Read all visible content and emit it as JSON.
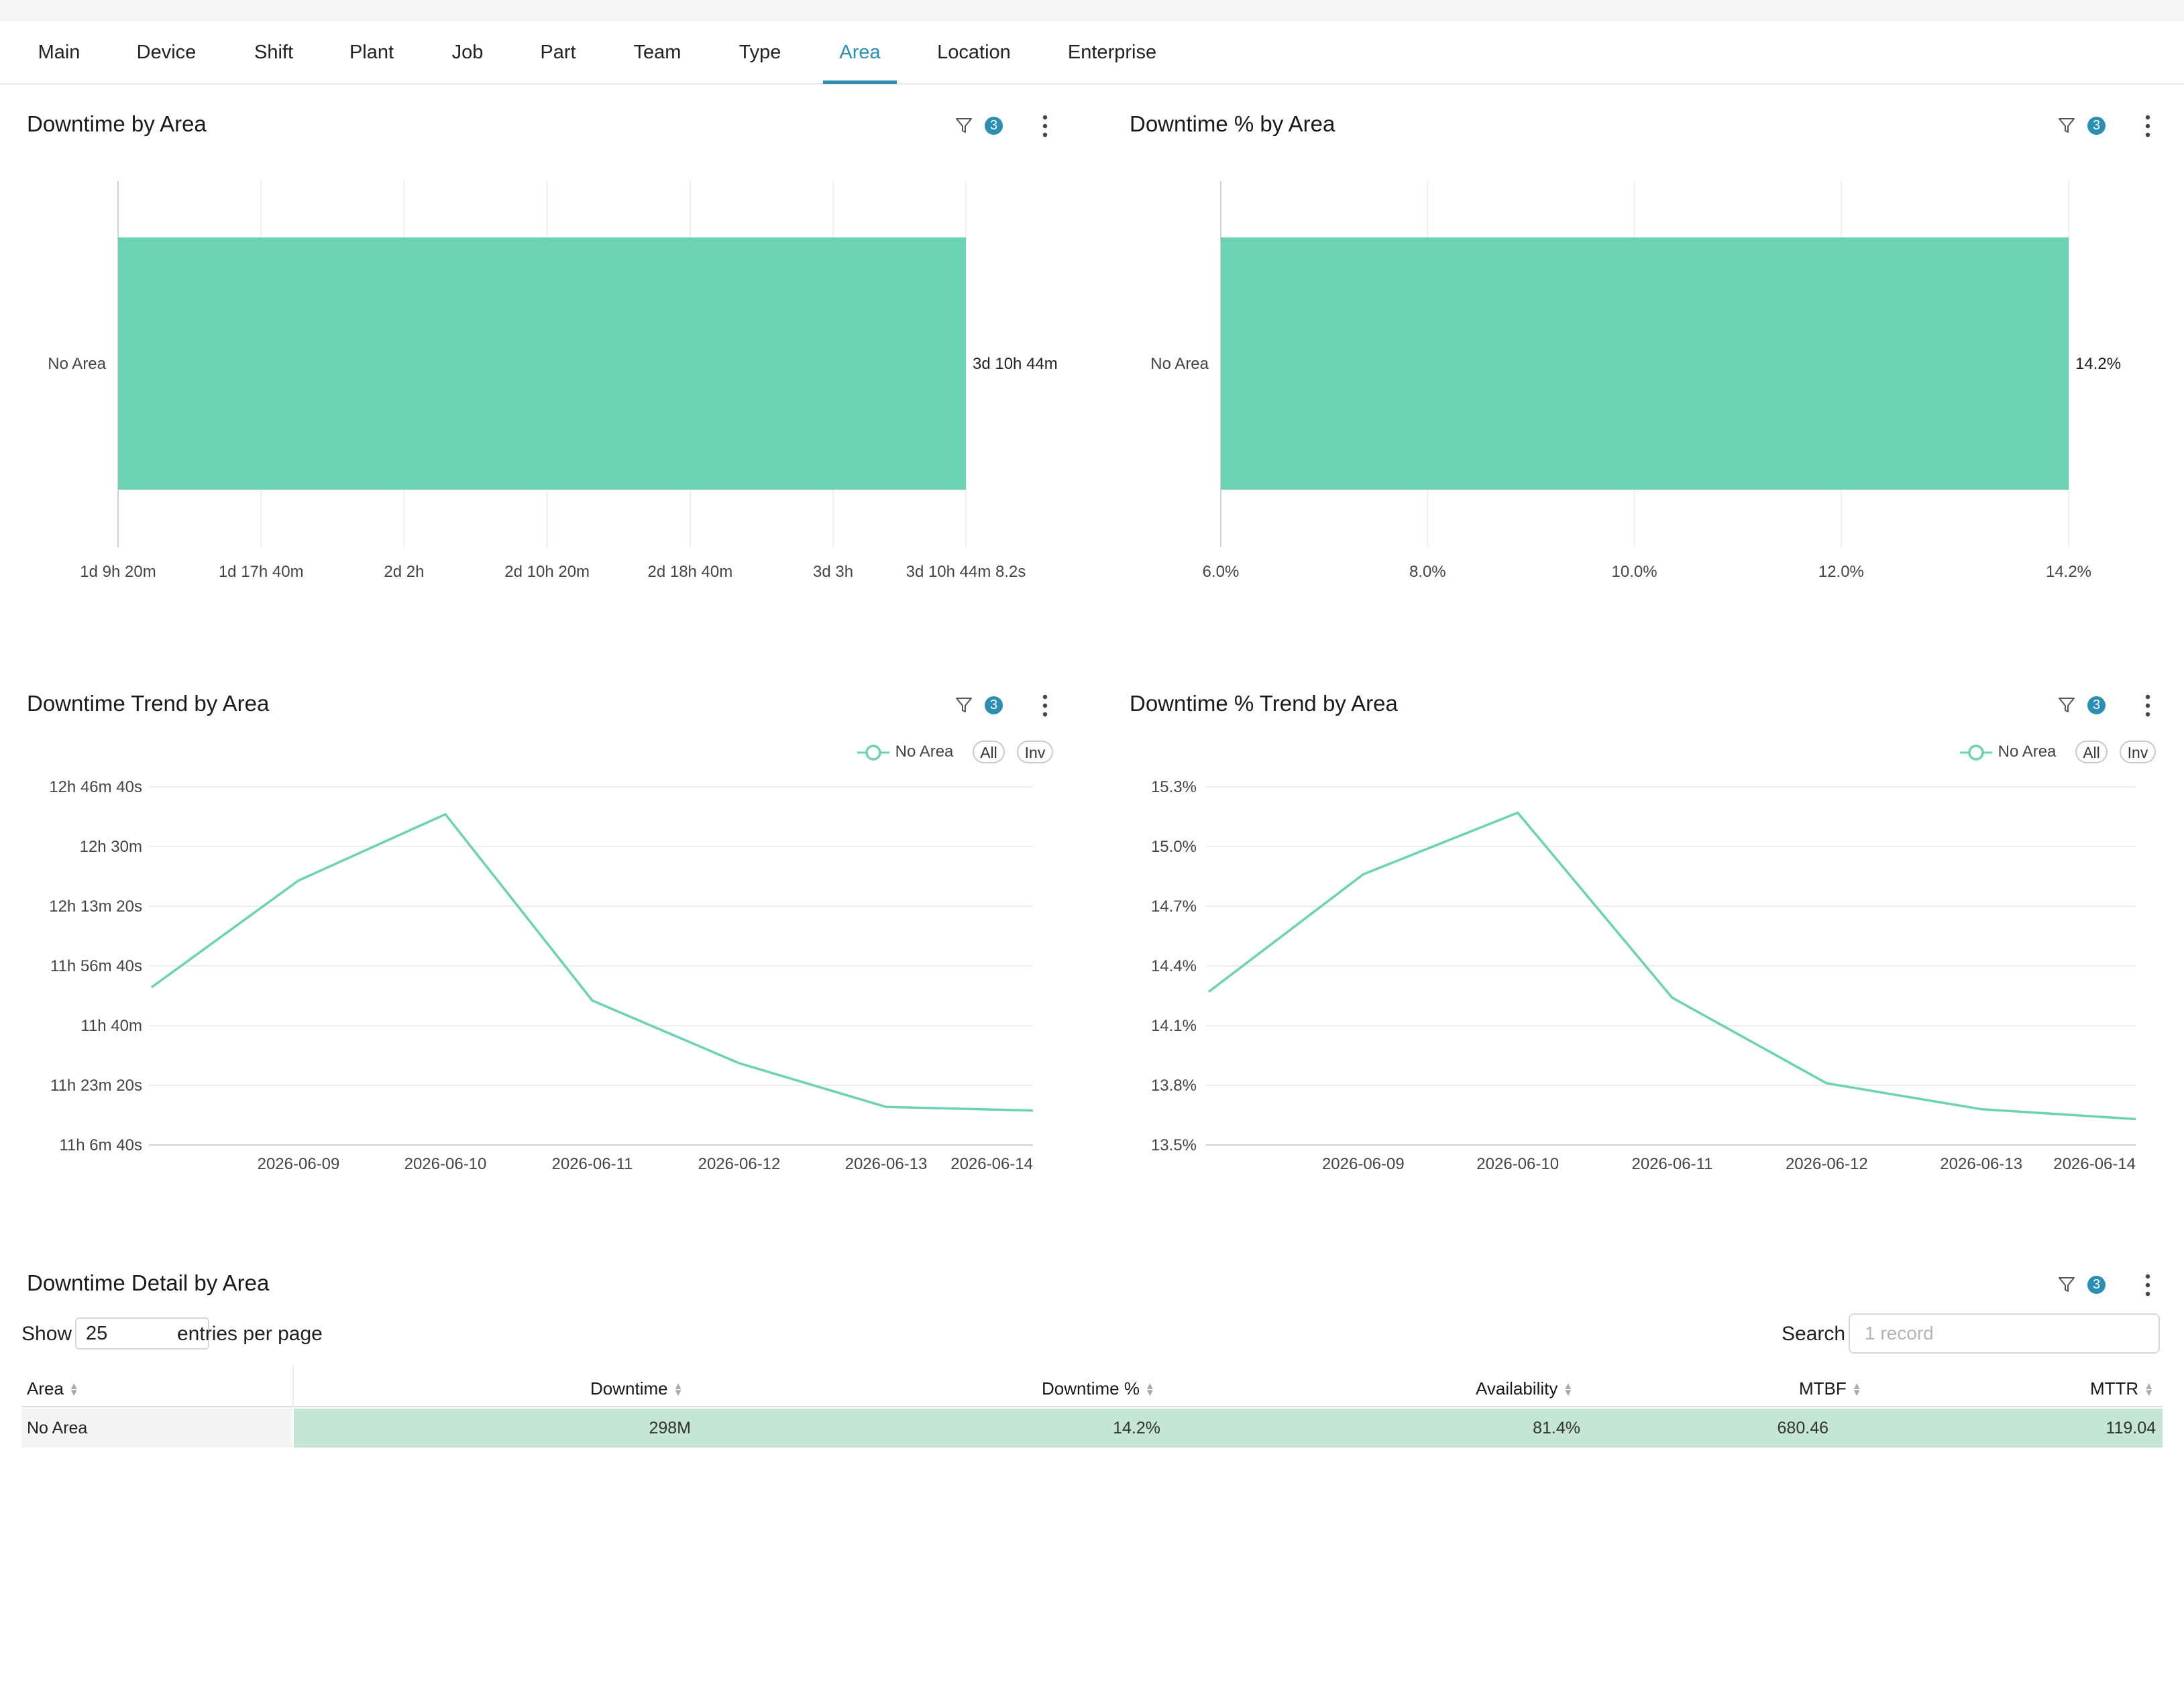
{
  "tabs": [
    {
      "label": "Main"
    },
    {
      "label": "Device"
    },
    {
      "label": "Shift"
    },
    {
      "label": "Plant"
    },
    {
      "label": "Job"
    },
    {
      "label": "Part"
    },
    {
      "label": "Team"
    },
    {
      "label": "Type"
    },
    {
      "label": "Area"
    },
    {
      "label": "Location"
    },
    {
      "label": "Enterprise"
    }
  ],
  "active_tab": "Area",
  "accent_color": "#2a8fb3",
  "series_color": "#6cd3b2",
  "filter_count": "3",
  "panels": {
    "downtime_by_area": {
      "title": "Downtime by Area"
    },
    "downtime_pct_by_area": {
      "title": "Downtime % by Area"
    },
    "downtime_trend": {
      "title": "Downtime Trend by Area",
      "legend": "No Area",
      "all_label": "All",
      "inv_label": "Inv"
    },
    "downtime_pct_trend": {
      "title": "Downtime % Trend by Area",
      "legend": "No Area",
      "all_label": "All",
      "inv_label": "Inv"
    },
    "detail": {
      "title": "Downtime Detail by Area"
    }
  },
  "chart_data": [
    {
      "type": "bar",
      "orientation": "horizontal",
      "title": "Downtime by Area",
      "categories": [
        "No Area"
      ],
      "value_labels": [
        "3d 10h 44m"
      ],
      "x_ticks": [
        "1d 9h 20m",
        "1d 17h 40m",
        "2d 2h",
        "2d 10h 20m",
        "2d 18h 40m",
        "3d 3h",
        "3d 10h 44m 8.2s"
      ],
      "x_tick_minutes": [
        2000,
        2500,
        3000,
        3500,
        4000,
        4500,
        4964.1
      ],
      "values_minutes": [
        4964.1
      ],
      "grid": true
    },
    {
      "type": "bar",
      "orientation": "horizontal",
      "title": "Downtime % by Area",
      "categories": [
        "No Area"
      ],
      "value_labels": [
        "14.2%"
      ],
      "x_ticks": [
        "6.0%",
        "8.0%",
        "10.0%",
        "12.0%",
        "14.2%"
      ],
      "x_tick_values": [
        6.0,
        8.0,
        10.0,
        12.0,
        14.2
      ],
      "values": [
        14.2
      ],
      "grid": true
    },
    {
      "type": "line",
      "title": "Downtime Trend by Area",
      "x": [
        "2026-06-08",
        "2026-06-09",
        "2026-06-10",
        "2026-06-11",
        "2026-06-12",
        "2026-06-13",
        "2026-06-14"
      ],
      "x_tick_labels": [
        "2026-06-09",
        "2026-06-10",
        "2026-06-11",
        "2026-06-12",
        "2026-06-13",
        "2026-06-14"
      ],
      "y_ticks": [
        "12h 46m 40s",
        "12h 30m",
        "12h 13m 20s",
        "11h 56m 40s",
        "11h 40m",
        "11h 23m 20s",
        "11h 6m 40s"
      ],
      "y_tick_minutes": [
        766.67,
        750,
        733.33,
        716.67,
        700,
        683.33,
        666.67
      ],
      "ylim_minutes": [
        666.67,
        766.67
      ],
      "series": [
        {
          "name": "No Area",
          "values_minutes": [
            710.7,
            740.5,
            759,
            707,
            689.5,
            677.3,
            676.3
          ]
        }
      ],
      "grid": true,
      "legend": "top-right"
    },
    {
      "type": "line",
      "title": "Downtime % Trend by Area",
      "x": [
        "2026-06-08",
        "2026-06-09",
        "2026-06-10",
        "2026-06-11",
        "2026-06-12",
        "2026-06-13",
        "2026-06-14"
      ],
      "x_tick_labels": [
        "2026-06-09",
        "2026-06-10",
        "2026-06-11",
        "2026-06-12",
        "2026-06-13",
        "2026-06-14"
      ],
      "y_ticks": [
        "15.3%",
        "15.0%",
        "14.7%",
        "14.4%",
        "14.1%",
        "13.8%",
        "13.5%"
      ],
      "y_tick_values": [
        15.3,
        15.0,
        14.7,
        14.4,
        14.1,
        13.8,
        13.5
      ],
      "ylim": [
        13.5,
        15.3
      ],
      "series": [
        {
          "name": "No Area",
          "values": [
            14.27,
            14.86,
            15.17,
            14.24,
            13.81,
            13.68,
            13.63
          ]
        }
      ],
      "grid": true,
      "legend": "top-right"
    },
    {
      "type": "table",
      "title": "Downtime Detail by Area",
      "columns": [
        "Area",
        "Downtime",
        "Downtime %",
        "Availability",
        "MTBF",
        "MTTR"
      ],
      "rows": [
        [
          "No Area",
          "298M",
          "14.2%",
          "81.4%",
          "680.46",
          "119.04"
        ]
      ]
    }
  ],
  "table_controls": {
    "show_label": "Show",
    "entries_value": "25",
    "entries_suffix": "entries per page",
    "search_label": "Search",
    "search_placeholder": "1 record"
  }
}
